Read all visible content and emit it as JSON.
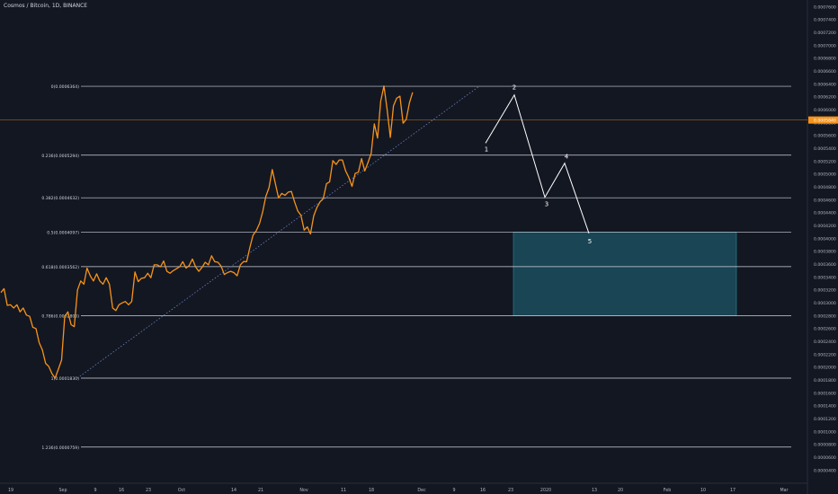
{
  "header": {
    "title": "Cosmos / Bitcoin, 1D, BINANCE"
  },
  "chart_data": {
    "type": "line",
    "x_axis_labels": [
      "19",
      "Sep",
      "9",
      "16",
      "23",
      "Oct",
      "14",
      "21",
      "Nov",
      "11",
      "18",
      "Dec",
      "9",
      "16",
      "23",
      "2020",
      "13",
      "20",
      "Feb",
      "10",
      "17",
      "Mar"
    ],
    "y_ticks": [
      "0.0007600",
      "0.0007400",
      "0.0007200",
      "0.0007000",
      "0.0006800",
      "0.0006600",
      "0.0006400",
      "0.0006200",
      "0.0006000",
      "0.0005800",
      "0.0005600",
      "0.0005400",
      "0.0005200",
      "0.0005000",
      "0.0004800",
      "0.0004600",
      "0.0004400",
      "0.0004200",
      "0.0004000",
      "0.0003800",
      "0.0003600",
      "0.0003400",
      "0.0003200",
      "0.0003000",
      "0.0002800",
      "0.0002600",
      "0.0002400",
      "0.0002200",
      "0.0002000",
      "0.0001800",
      "0.0001600",
      "0.0001400",
      "0.0001200",
      "0.0001000",
      "0.0000800",
      "0.0000600",
      "0.0000400"
    ],
    "ylim": [
      3e-05,
      0.00077
    ],
    "current_price": {
      "label": "0.0005840",
      "value": 0.000584,
      "color": "#f7931a"
    },
    "fib_levels": [
      {
        "label": "0(0.0006364)",
        "value": 0.0006364
      },
      {
        "label": "0.236(0.0005294)",
        "value": 0.0005294
      },
      {
        "label": "0.382(0.0004632)",
        "value": 0.0004632
      },
      {
        "label": "0.5(0.0004097)",
        "value": 0.0004097
      },
      {
        "label": "0.618(0.0003562)",
        "value": 0.0003562
      },
      {
        "label": "0.786(0.0002800)",
        "value": 0.00028
      },
      {
        "label": "1(0.0001830)",
        "value": 0.000183
      },
      {
        "label": "1.236(0.0000759)",
        "value": 7.59e-05
      }
    ],
    "series": [
      {
        "color": "#f7931a",
        "values": [
          0.000316,
          0.000322,
          0.000296,
          0.000297,
          0.000292,
          0.000297,
          0.000286,
          0.000292,
          0.000281,
          0.000279,
          0.000262,
          0.00026,
          0.000238,
          0.000227,
          0.000206,
          0.000201,
          0.00019,
          0.000183,
          0.000197,
          0.000211,
          0.000279,
          0.000286,
          0.000266,
          0.000263,
          0.00032,
          0.000334,
          0.000329,
          0.000354,
          0.000342,
          0.000334,
          0.000345,
          0.000334,
          0.000329,
          0.000339,
          0.000329,
          0.000292,
          0.000288,
          0.000297,
          0.0003,
          0.000302,
          0.000297,
          0.000302,
          0.000348,
          0.000333,
          0.000338,
          0.000339,
          0.000346,
          0.000339,
          0.000359,
          0.000359,
          0.000356,
          0.000365,
          0.000349,
          0.000346,
          0.00035,
          0.000353,
          0.000356,
          0.000364,
          0.000354,
          0.000358,
          0.000368,
          0.000356,
          0.000349,
          0.000355,
          0.000363,
          0.000359,
          0.000373,
          0.000364,
          0.000363,
          0.000357,
          0.000344,
          0.000347,
          0.000349,
          0.000347,
          0.000342,
          0.000359,
          0.000364,
          0.000364,
          0.000386,
          0.000405,
          0.000412,
          0.000423,
          0.000441,
          0.000465,
          0.000479,
          0.000507,
          0.000485,
          0.000463,
          0.00047,
          0.000467,
          0.000472,
          0.000473,
          0.000457,
          0.000443,
          0.000436,
          0.000413,
          0.000418,
          0.000407,
          0.000435,
          0.000448,
          0.000457,
          0.000462,
          0.000485,
          0.000488,
          0.000521,
          0.000515,
          0.000522,
          0.000522,
          0.000505,
          0.000495,
          0.000481,
          0.000501,
          0.000503,
          0.000524,
          0.000505,
          0.000518,
          0.000532,
          0.000578,
          0.000556,
          0.000613,
          0.000637,
          0.000601,
          0.000557,
          0.000606,
          0.000618,
          0.000621,
          0.000579,
          0.000585,
          0.000611,
          0.000627
        ]
      }
    ],
    "wave_labels": [
      "1",
      "2",
      "3",
      "4",
      "5"
    ],
    "wave_points": [
      {
        "label": "1",
        "x": 22.4,
        "y": 0.000548
      },
      {
        "label": "2",
        "x": 22.55,
        "y": 0.000623
      },
      {
        "label": "3",
        "x": 28.9,
        "y": 0.000464
      },
      {
        "label": "4",
        "x": 31.6,
        "y": 0.000517
      },
      {
        "label": "5",
        "x": 35.4,
        "y": 0.000408
      }
    ],
    "target_zone": {
      "y_top": 0.0004097,
      "y_bottom": 0.00028,
      "color": "#1c5566"
    }
  }
}
